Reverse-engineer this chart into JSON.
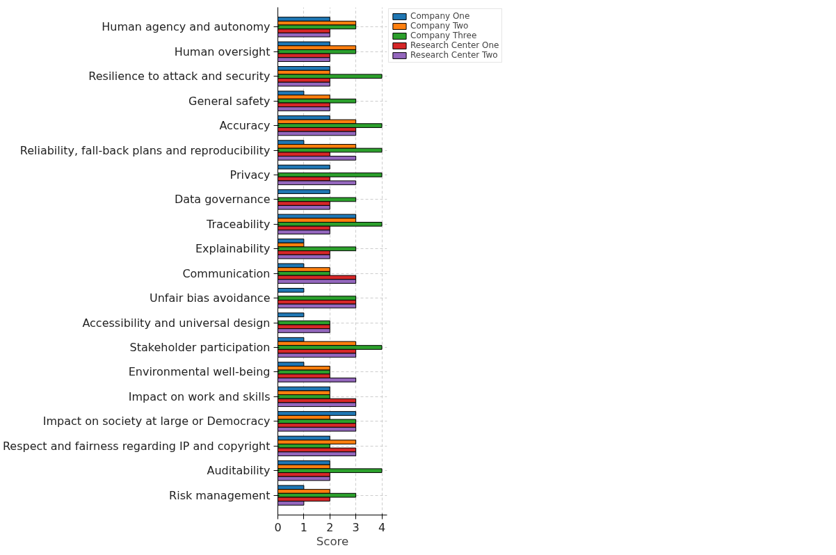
{
  "chart_data": {
    "type": "bar",
    "orientation": "horizontal",
    "xlabel": "Score",
    "categories": [
      "Human agency and autonomy",
      "Human oversight",
      "Resilience to attack and security",
      "General safety",
      "Accuracy",
      "Reliability, fall-back plans and reproducibility",
      "Privacy",
      "Data governance",
      "Traceability",
      "Explainability",
      "Communication",
      "Unfair bias avoidance",
      "Accessibility and universal design",
      "Stakeholder participation",
      "Environmental well-being",
      "Impact on work and skills",
      "Impact on society at large or Democracy",
      "Respect and fairness regarding IP and copyright",
      "Auditability",
      "Risk management"
    ],
    "series": [
      {
        "name": "Company One",
        "color": "#1f77b4",
        "values": [
          2,
          2,
          2,
          1,
          2,
          1,
          2,
          2,
          3,
          1,
          1,
          1,
          1,
          1,
          1,
          2,
          3,
          2,
          2,
          1
        ]
      },
      {
        "name": "Company Two",
        "color": "#ff7f0e",
        "values": [
          3,
          3,
          2,
          2,
          3,
          3,
          0,
          0,
          3,
          1,
          2,
          0,
          0,
          3,
          2,
          2,
          2,
          3,
          2,
          2
        ]
      },
      {
        "name": "Company Three",
        "color": "#2ca02c",
        "values": [
          3,
          3,
          4,
          3,
          4,
          4,
          4,
          3,
          4,
          3,
          2,
          3,
          2,
          4,
          2,
          2,
          3,
          2,
          4,
          3
        ]
      },
      {
        "name": "Research Center One",
        "color": "#d62728",
        "values": [
          2,
          2,
          2,
          2,
          3,
          2,
          2,
          2,
          2,
          2,
          3,
          3,
          2,
          3,
          2,
          3,
          3,
          3,
          2,
          2
        ]
      },
      {
        "name": "Research Center Two",
        "color": "#9467bd",
        "values": [
          2,
          2,
          2,
          2,
          3,
          3,
          3,
          2,
          2,
          2,
          3,
          3,
          2,
          3,
          3,
          3,
          3,
          3,
          2,
          1
        ]
      }
    ],
    "xlim": [
      0,
      4.2
    ],
    "xticks": [
      0,
      1,
      2,
      3,
      4
    ],
    "grid": true,
    "legend": "top right"
  }
}
